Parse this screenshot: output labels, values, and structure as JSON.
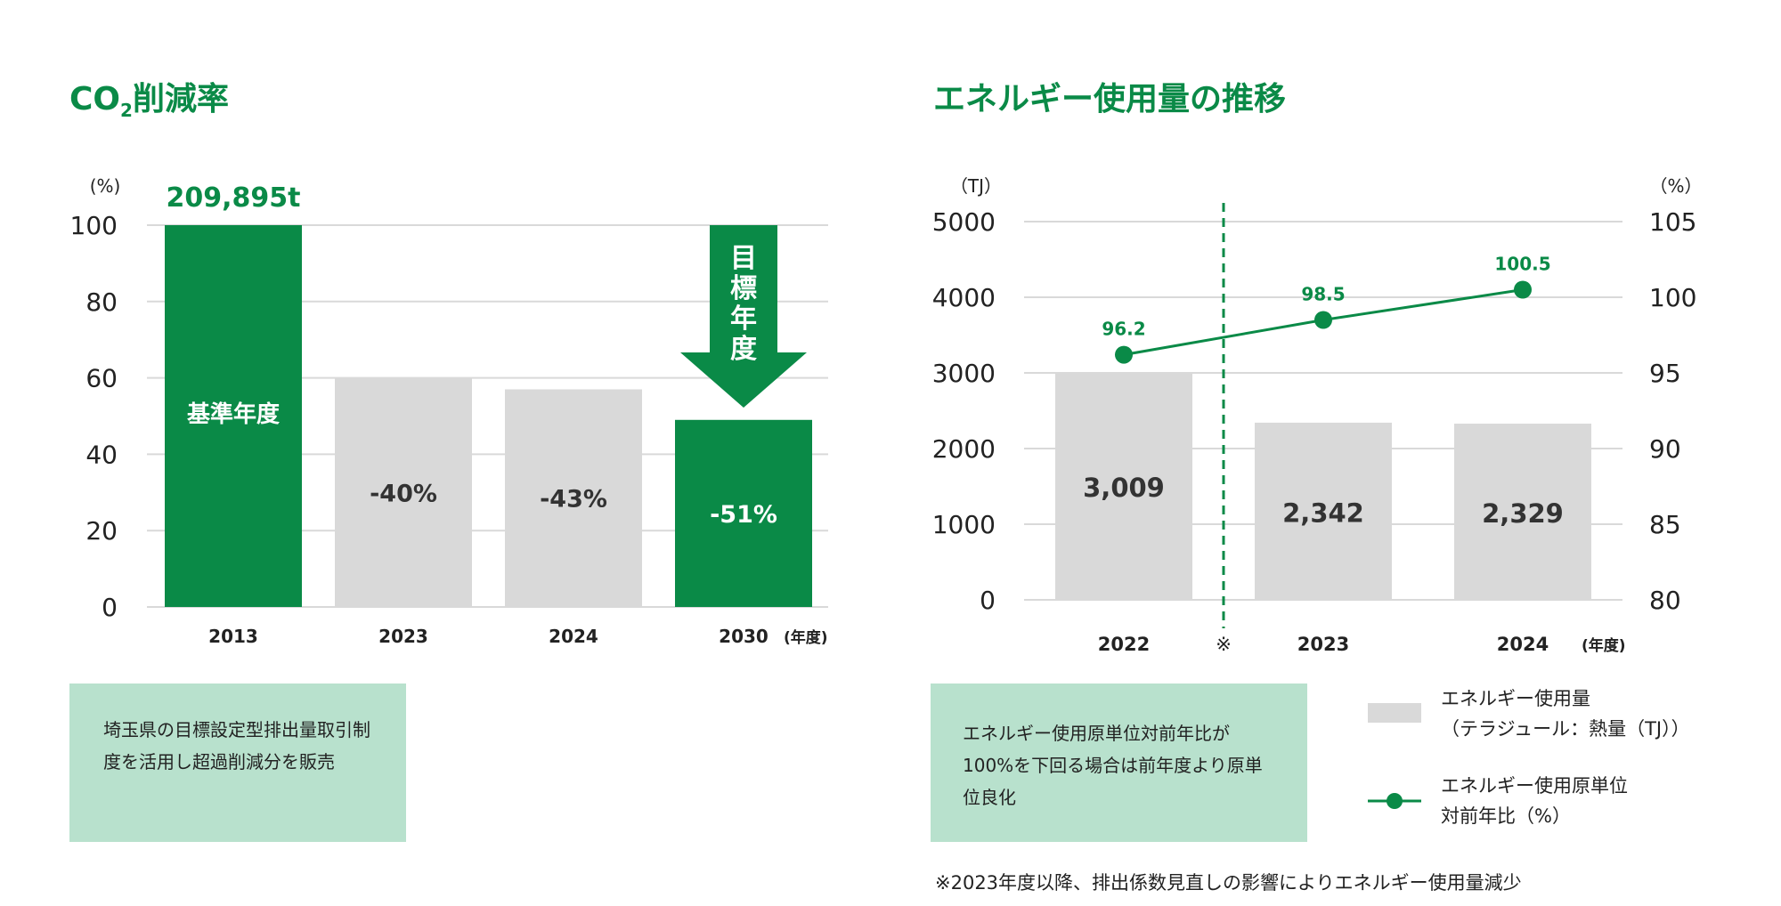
{
  "colors": {
    "green": "#0a8a47",
    "gray": "#d9d9d9",
    "note_bg": "#b8e1cd",
    "grid": "#d9d9d9",
    "text": "#222222"
  },
  "left": {
    "title_main": "CO",
    "title_sub": "2",
    "title_rest": "削減率",
    "note": "埼玉県の目標設定型排出量取引制度を活用し超過削減分を販売"
  },
  "right": {
    "title": "エネルギー使用量の推移",
    "note": "エネルギー使用原単位対前年比が100%を下回る場合は前年度より原単位良化",
    "legend_bar_line1": "エネルギー使用量",
    "legend_bar_line2": "（テラジュール：熱量（TJ））",
    "legend_line_line1": "エネルギー使用原単位",
    "legend_line_line2": "対前年比（%）",
    "footnote": "※2023年度以降、排出係数見直しの影響によりエネルギー使用量減少"
  },
  "chart_data": [
    {
      "type": "bar",
      "title": "CO2削減率",
      "ylabel": "(%)",
      "xlabel": "(年度)",
      "ylim": [
        0,
        100
      ],
      "yticks": [
        0,
        20,
        40,
        60,
        80,
        100
      ],
      "categories": [
        "2013",
        "2023",
        "2024",
        "2030"
      ],
      "values": [
        100,
        60,
        57,
        49
      ],
      "bar_colors": [
        "green",
        "gray",
        "gray",
        "green"
      ],
      "bar_labels": [
        "基準年度",
        "-40%",
        "-43%",
        "-51%"
      ],
      "top_label": "209,895t",
      "arrow_label": "目標年度",
      "grid": true
    },
    {
      "type": "bar+line",
      "title": "エネルギー使用量の推移",
      "ylabel": "（TJ）",
      "y2label": "（%）",
      "xlabel": "(年度)",
      "ylim": [
        0,
        5000
      ],
      "yticks": [
        0,
        1000,
        2000,
        3000,
        4000,
        5000
      ],
      "y2lim": [
        80,
        105
      ],
      "y2ticks": [
        80,
        85,
        90,
        95,
        100,
        105
      ],
      "categories": [
        "2022",
        "2023",
        "2024"
      ],
      "separator_label": "※",
      "series": [
        {
          "name": "エネルギー使用量",
          "kind": "bar",
          "values": [
            3009,
            2342,
            2329
          ],
          "labels": [
            "3,009",
            "2,342",
            "2,329"
          ]
        },
        {
          "name": "エネルギー使用原単位対前年比",
          "kind": "line",
          "axis": "right",
          "values": [
            96.2,
            98.5,
            100.5
          ],
          "labels": [
            "96.2",
            "98.5",
            "100.5"
          ]
        }
      ],
      "grid": true
    }
  ]
}
